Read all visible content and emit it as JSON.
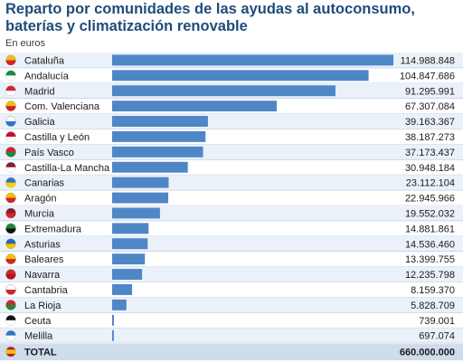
{
  "header": {
    "title": "Reparto por comunidades de las ayudas al autoconsumo, baterías y climatización renovable",
    "unit": "En euros"
  },
  "colors": {
    "bar": "#4f86c6",
    "row_alt": "#eaf1f9",
    "divider": "#b5c7dd",
    "total_row": "#cfdcec"
  },
  "chart_data": {
    "type": "bar",
    "orientation": "horizontal",
    "title": "Reparto por comunidades de las ayudas al autoconsumo, baterías y climatización renovable",
    "subtitle": "En euros",
    "grid": false,
    "legend": "none",
    "xlim": [
      0,
      114988848
    ],
    "categories": [
      "Cataluña",
      "Andalucía",
      "Madrid",
      "Com. Valenciana",
      "Galicia",
      "Castilla y León",
      "País Vasco",
      "Castilla-La Mancha",
      "Canarias",
      "Aragón",
      "Murcia",
      "Extremadura",
      "Asturias",
      "Baleares",
      "Navarra",
      "Cantabria",
      "La Rioja",
      "Ceuta",
      "Melilla"
    ],
    "values": [
      114988848,
      104847686,
      91295991,
      67307084,
      39163367,
      38187273,
      37173437,
      30948184,
      23112104,
      22945966,
      19552032,
      14881861,
      14536460,
      13399755,
      12235798,
      8159370,
      5828709,
      739001,
      697074
    ],
    "value_labels": [
      "114.988.848",
      "104.847.686",
      "91.295.991",
      "67.307.084",
      "39.163.367",
      "38.187.273",
      "37.173.437",
      "30.948.184",
      "23.112.104",
      "22.945.966",
      "19.552.032",
      "14.881.861",
      "14.536.460",
      "13.399.755",
      "12.235.798",
      "8.159.370",
      "5.828.709",
      "739.001",
      "697.074"
    ],
    "flag_icons": [
      "cataluna-flag-icon",
      "andalucia-flag-icon",
      "madrid-flag-icon",
      "com-valenciana-flag-icon",
      "galicia-flag-icon",
      "castilla-y-leon-flag-icon",
      "pais-vasco-flag-icon",
      "castilla-la-mancha-flag-icon",
      "canarias-flag-icon",
      "aragon-flag-icon",
      "murcia-flag-icon",
      "extremadura-flag-icon",
      "asturias-flag-icon",
      "baleares-flag-icon",
      "navarra-flag-icon",
      "cantabria-flag-icon",
      "la-rioja-flag-icon",
      "ceuta-flag-icon",
      "melilla-flag-icon"
    ],
    "total": {
      "label": "TOTAL",
      "value": 660000000,
      "value_label": "660.000.000",
      "flag_icon": "espana-flag-icon"
    }
  }
}
